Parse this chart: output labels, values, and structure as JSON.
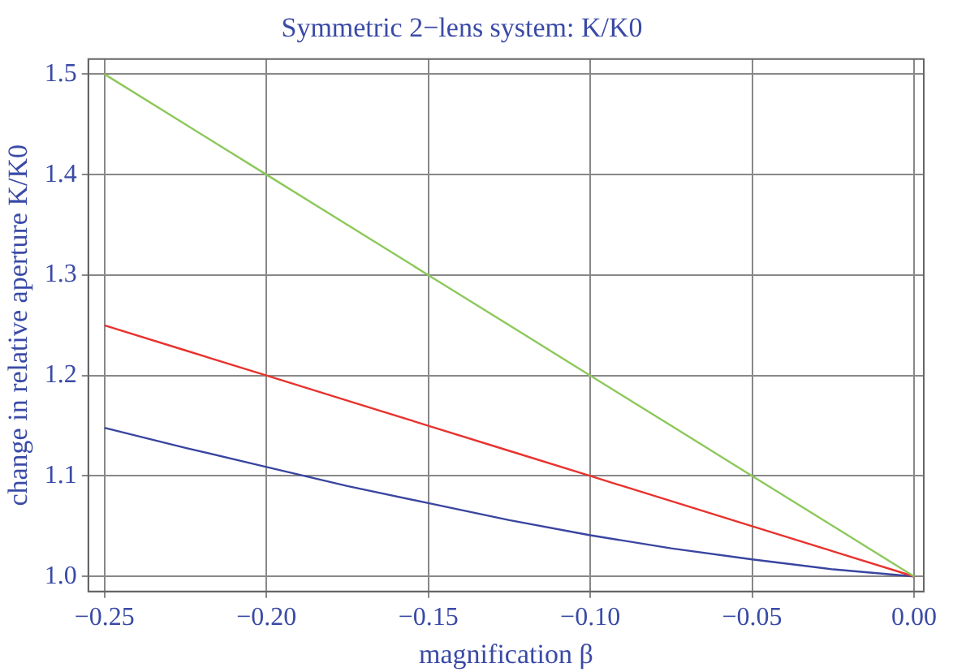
{
  "chart_data": {
    "type": "line",
    "title": "Symmetric 2−lens system: K/K0",
    "xlabel": "magnification β",
    "ylabel": "change in relative aperture K/K0",
    "x": [
      -0.25,
      -0.225,
      -0.2,
      -0.175,
      -0.15,
      -0.125,
      -0.1,
      -0.075,
      -0.05,
      -0.025,
      0
    ],
    "series": [
      {
        "color": "#8cc85a",
        "values": [
          1.5,
          1.45,
          1.4,
          1.35,
          1.3,
          1.25,
          1.2,
          1.15,
          1.1,
          1.05,
          1.0
        ]
      },
      {
        "color": "#e8332e",
        "values": [
          1.25,
          1.225,
          1.2,
          1.175,
          1.15,
          1.125,
          1.1,
          1.075,
          1.05,
          1.025,
          1.0
        ]
      },
      {
        "color": "#3a45a0",
        "values": [
          1.148,
          1.128,
          1.109,
          1.09,
          1.073,
          1.056,
          1.041,
          1.028,
          1.017,
          1.007,
          1.0
        ]
      }
    ],
    "xlim": [
      -0.255,
      0.003
    ],
    "ylim": [
      0.985,
      1.515
    ],
    "xticks": [
      {
        "value": -0.25,
        "label": "−0.25"
      },
      {
        "value": -0.2,
        "label": "−0.20"
      },
      {
        "value": -0.15,
        "label": "−0.15"
      },
      {
        "value": -0.1,
        "label": "−0.10"
      },
      {
        "value": -0.05,
        "label": "−0.05"
      },
      {
        "value": 0,
        "label": "0.00"
      }
    ],
    "yticks": [
      {
        "value": 1.0,
        "label": "1.0"
      },
      {
        "value": 1.1,
        "label": "1.1"
      },
      {
        "value": 1.2,
        "label": "1.2"
      },
      {
        "value": 1.3,
        "label": "1.3"
      },
      {
        "value": 1.4,
        "label": "1.4"
      },
      {
        "value": 1.5,
        "label": "1.5"
      }
    ],
    "grid": true,
    "marker": "none",
    "line_style": "solid"
  }
}
